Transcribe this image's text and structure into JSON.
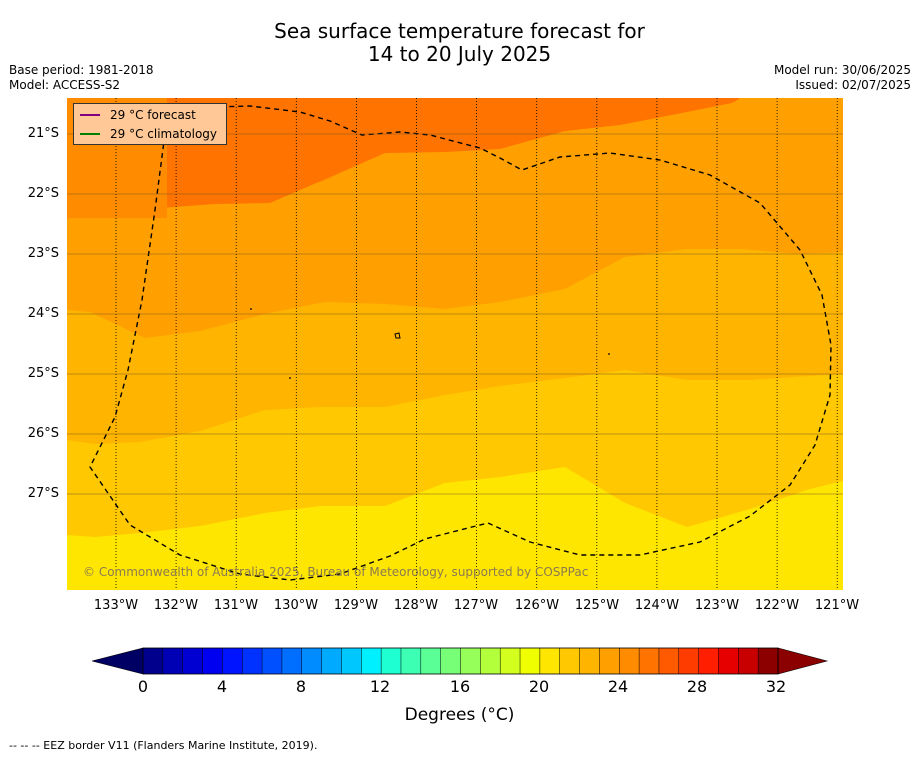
{
  "title_line1": "Sea surface temperature forecast for",
  "title_line2": "14 to 20 July 2025",
  "base_period": "Base period: 1981-2018",
  "model": "Model: ACCESS-S2",
  "model_run": "Model run: 30/06/2025",
  "issued": "Issued: 02/07/2025",
  "legend": {
    "forecast_label": "29 °C  forecast",
    "forecast_color": "#800080",
    "climatology_label": "29 °C  climatology",
    "climatology_color": "#008000"
  },
  "map": {
    "lat_labels": [
      "21°S",
      "22°S",
      "23°S",
      "24°S",
      "25°S",
      "26°S",
      "27°S"
    ],
    "lon_labels": [
      "133°W",
      "132°W",
      "131°W",
      "130°W",
      "129°W",
      "128°W",
      "127°W",
      "126°W",
      "125°W",
      "124°W",
      "123°W",
      "122°W",
      "121°W"
    ],
    "copyright": "© Commonwealth of Australia 2025, Bureau of Meteorology, supported by COSPPac"
  },
  "colorbar": {
    "ticks": [
      "0",
      "4",
      "8",
      "12",
      "16",
      "20",
      "24",
      "28",
      "32"
    ],
    "label": "Degrees (°C)",
    "colors": [
      "#00008c",
      "#0000b4",
      "#0000d2",
      "#0000f0",
      "#0014ff",
      "#0032ff",
      "#0050ff",
      "#006eff",
      "#008cff",
      "#00aaff",
      "#00c8ff",
      "#00f0ff",
      "#1effd2",
      "#3cffb4",
      "#5aff96",
      "#78ff78",
      "#96ff5a",
      "#b4ff3c",
      "#d2ff1e",
      "#f0ff00",
      "#ffe600",
      "#ffc800",
      "#ffb400",
      "#ffa000",
      "#ff8c00",
      "#ff7300",
      "#ff5a00",
      "#ff3c00",
      "#ff1e00",
      "#e60000",
      "#c80000",
      "#8c0000"
    ],
    "low_color": "#000064",
    "high_color": "#8b0000"
  },
  "footer": "--  --  -- EEZ border V11 (Flanders Marine Institute, 2019)."
}
